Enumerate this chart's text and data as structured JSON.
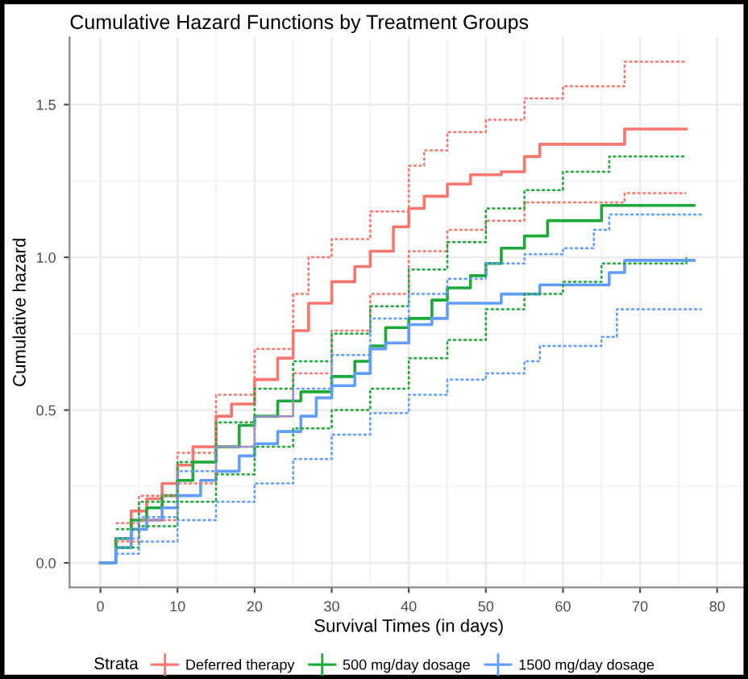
{
  "chart_data": {
    "type": "step",
    "title": "Cumulative Hazard Functions by Treatment Groups",
    "xlabel": "Survival Times (in days)",
    "ylabel": "Cumulative hazard",
    "legend_title": "Strata",
    "legend": "bottom",
    "grid": true,
    "xlim": [
      -4,
      84
    ],
    "xticks": [
      0,
      10,
      20,
      30,
      40,
      50,
      60,
      70,
      80
    ],
    "ylim": [
      -0.08,
      1.72
    ],
    "yticks": [
      {
        "value": 0,
        "label": "0.0"
      },
      {
        "value": 0.5,
        "label": "0.5"
      },
      {
        "value": 1,
        "label": "1.0"
      },
      {
        "value": 1.5,
        "label": "1.5"
      }
    ],
    "series": [
      {
        "name": "Deferred therapy",
        "color": "#f8766d",
        "x": [
          0,
          2,
          4,
          6,
          8,
          10,
          12,
          15,
          17,
          20,
          23,
          25,
          27,
          30,
          33,
          35,
          38,
          40,
          42,
          45,
          48,
          52,
          55,
          57,
          60,
          68,
          76
        ],
        "values": [
          0,
          0.08,
          0.17,
          0.21,
          0.26,
          0.32,
          0.38,
          0.48,
          0.52,
          0.6,
          0.67,
          0.76,
          0.85,
          0.92,
          0.97,
          1.02,
          1.1,
          1.16,
          1.2,
          1.24,
          1.27,
          1.28,
          1.33,
          1.37,
          1.37,
          1.42,
          1.42
        ]
      },
      {
        "name": "500 mg/day dosage",
        "color": "#1ea83a",
        "x": [
          0,
          2,
          4,
          6,
          8,
          10,
          12,
          15,
          18,
          20,
          23,
          26,
          30,
          33,
          35,
          37,
          40,
          43,
          45,
          48,
          50,
          52,
          55,
          58,
          63,
          65,
          77
        ],
        "values": [
          0,
          0.08,
          0.14,
          0.18,
          0.22,
          0.27,
          0.33,
          0.38,
          0.45,
          0.48,
          0.53,
          0.56,
          0.61,
          0.66,
          0.71,
          0.77,
          0.8,
          0.86,
          0.9,
          0.94,
          0.98,
          1.03,
          1.07,
          1.12,
          1.12,
          1.17,
          1.17
        ]
      },
      {
        "name": "1500 mg/day dosage",
        "color": "#619cff",
        "x": [
          0,
          2,
          4,
          6,
          8,
          10,
          13,
          15,
          18,
          20,
          23,
          26,
          28,
          30,
          33,
          35,
          37,
          40,
          43,
          45,
          50,
          52,
          56,
          57,
          64,
          66,
          68,
          77
        ],
        "values": [
          0,
          0.05,
          0.11,
          0.14,
          0.18,
          0.22,
          0.27,
          0.3,
          0.35,
          0.39,
          0.43,
          0.48,
          0.54,
          0.58,
          0.62,
          0.7,
          0.72,
          0.78,
          0.8,
          0.85,
          0.85,
          0.88,
          0.88,
          0.91,
          0.91,
          0.95,
          0.99,
          0.99
        ]
      },
      {
        "color": "#f8766d",
        "line_style": "dashed",
        "x": [
          2,
          5,
          10,
          15,
          20,
          25,
          27,
          30,
          35,
          40,
          42,
          45,
          50,
          55,
          60,
          68,
          76
        ],
        "values": [
          0.13,
          0.22,
          0.36,
          0.55,
          0.7,
          0.88,
          1.0,
          1.06,
          1.15,
          1.3,
          1.35,
          1.41,
          1.45,
          1.52,
          1.56,
          1.64,
          1.64
        ]
      },
      {
        "color": "#f8766d",
        "line_style": "dashed",
        "x": [
          2,
          5,
          10,
          15,
          20,
          25,
          30,
          35,
          40,
          45,
          50,
          55,
          60,
          68,
          76
        ],
        "values": [
          0.07,
          0.14,
          0.26,
          0.38,
          0.48,
          0.62,
          0.76,
          0.88,
          1.02,
          1.09,
          1.12,
          1.18,
          1.18,
          1.21,
          1.21
        ]
      },
      {
        "color": "#1ea83a",
        "line_style": "dashed",
        "x": [
          2,
          5,
          10,
          15,
          20,
          25,
          30,
          35,
          40,
          45,
          50,
          55,
          60,
          64,
          66,
          76
        ],
        "values": [
          0.11,
          0.2,
          0.33,
          0.46,
          0.57,
          0.66,
          0.75,
          0.84,
          0.96,
          1.05,
          1.16,
          1.22,
          1.28,
          1.28,
          1.33,
          1.33
        ]
      },
      {
        "color": "#1ea83a",
        "line_style": "dashed",
        "x": [
          2,
          5,
          10,
          15,
          20,
          25,
          30,
          35,
          40,
          45,
          50,
          55,
          60,
          65,
          76
        ],
        "values": [
          0.05,
          0.12,
          0.2,
          0.29,
          0.38,
          0.44,
          0.5,
          0.57,
          0.67,
          0.73,
          0.83,
          0.88,
          0.92,
          0.98,
          1.0
        ]
      },
      {
        "color": "#619cff",
        "line_style": "dashed",
        "x": [
          2,
          5,
          10,
          15,
          20,
          25,
          30,
          35,
          40,
          45,
          50,
          55,
          60,
          64,
          66,
          78
        ],
        "values": [
          0.08,
          0.15,
          0.3,
          0.38,
          0.48,
          0.57,
          0.68,
          0.8,
          0.88,
          0.93,
          0.98,
          1.01,
          1.03,
          1.09,
          1.14,
          1.14
        ]
      },
      {
        "color": "#619cff",
        "line_style": "dashed",
        "x": [
          2,
          5,
          10,
          15,
          20,
          25,
          30,
          35,
          40,
          45,
          50,
          55,
          57,
          65,
          67,
          78
        ],
        "values": [
          0.03,
          0.07,
          0.14,
          0.2,
          0.26,
          0.34,
          0.42,
          0.49,
          0.55,
          0.6,
          0.62,
          0.66,
          0.71,
          0.74,
          0.83,
          0.83
        ]
      }
    ]
  }
}
